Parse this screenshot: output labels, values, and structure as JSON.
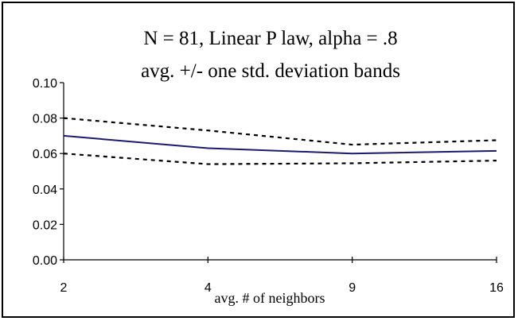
{
  "chart_data": {
    "type": "line",
    "title": "N = 81, Linear P law, alpha = .8",
    "subtitle": "avg. +/- one std. deviation bands",
    "xlabel": "avg. # of neighbors",
    "ylabel": "",
    "categories": [
      "2",
      "4",
      "9",
      "16"
    ],
    "ylim": [
      0,
      0.1
    ],
    "yticks": [
      "0.00",
      "0.02",
      "0.04",
      "0.06",
      "0.08",
      "0.10"
    ],
    "grid": false,
    "legend": "none",
    "series": [
      {
        "style": "solid",
        "color": "#1a1a6e",
        "values": [
          0.07,
          0.063,
          0.06,
          0.0615
        ]
      },
      {
        "style": "dotted",
        "color": "#000000",
        "values": [
          0.08,
          0.073,
          0.065,
          0.0675
        ]
      },
      {
        "style": "dotted",
        "color": "#000000",
        "values": [
          0.06,
          0.054,
          0.0545,
          0.056
        ]
      }
    ]
  }
}
